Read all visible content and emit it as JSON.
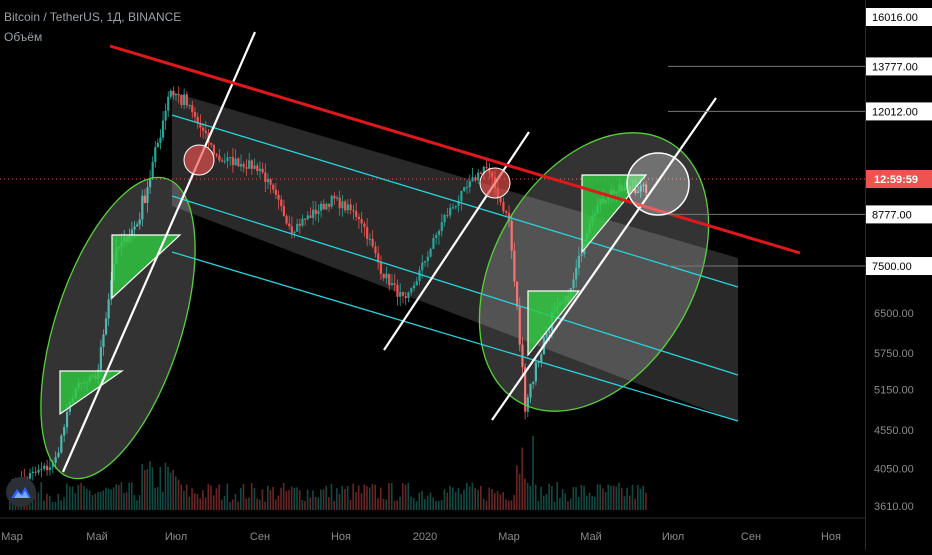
{
  "header": {
    "title": "Bitcoin / TetherUS, 1Д, BINANCE",
    "indicator": "Объём"
  },
  "colors": {
    "background": "#000000",
    "candle_up": "#26a69a",
    "candle_down": "#ef5350",
    "resistance_line": "#e0181b",
    "channel_lines": "#27d3db",
    "trend_lines": "#ffffff",
    "highlight_triangles": "#2ecc40",
    "ellipse_outline": "#57d13a",
    "price_line": "#ef5350"
  },
  "chart_data": {
    "type": "candlestick",
    "series": [
      {
        "name": "BTCUSDT",
        "x": [
          "2019-03-01",
          "2019-04-01",
          "2019-04-15",
          "2019-05-01",
          "2019-05-15",
          "2019-06-01",
          "2019-06-15",
          "2019-06-26",
          "2019-07-10",
          "2019-08-01",
          "2019-08-15",
          "2019-09-01",
          "2019-09-25",
          "2019-10-26",
          "2019-11-15",
          "2019-12-01",
          "2019-12-18",
          "2020-01-15",
          "2020-02-13",
          "2020-03-01",
          "2020-03-13",
          "2020-04-01",
          "2020-04-15",
          "2020-05-01",
          "2020-05-15",
          "2020-06-01",
          "2020-06-12"
        ],
        "close": [
          3850,
          4100,
          5150,
          5350,
          7800,
          8550,
          10500,
          12900,
          12200,
          10400,
          10300,
          10100,
          8400,
          9200,
          8700,
          7350,
          6700,
          8700,
          10200,
          8600,
          4950,
          6400,
          6850,
          8800,
          9400,
          9500,
          9470
        ]
      }
    ],
    "y_ticks": [
      "16016.00",
      "13777.00",
      "12012.00",
      "8777.00",
      "7500.00",
      "6500.00",
      "5750.00",
      "5150.00",
      "4550.00",
      "4050.00",
      "3610.00"
    ],
    "current_price_label": "12:59:59",
    "x_ticks": [
      "Мар",
      "Май",
      "Июл",
      "Сен",
      "Ноя",
      "2020",
      "Мар",
      "Май",
      "Июл",
      "Сен",
      "Ноя"
    ],
    "scale": "log",
    "grid": false,
    "volume_panel": true
  }
}
